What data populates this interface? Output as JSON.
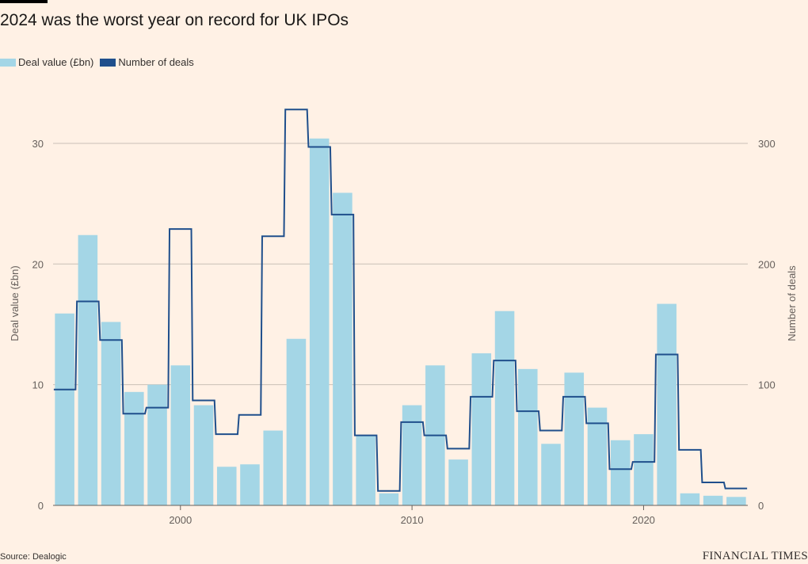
{
  "header": {
    "title": "2024 was the worst year on record for UK IPOs"
  },
  "legend": {
    "items": [
      {
        "label": "Deal value (£bn)",
        "color": "#a4d6e6"
      },
      {
        "label": "Number of deals",
        "color": "#1f4f8c"
      }
    ]
  },
  "footer": {
    "source": "Source: Dealogic",
    "brand": "FINANCIAL TIMES"
  },
  "chart_data": {
    "type": "bar",
    "title": "2024 was the worst year on record for UK IPOs",
    "x": [
      1995,
      1996,
      1997,
      1998,
      1999,
      2000,
      2001,
      2002,
      2003,
      2004,
      2005,
      2006,
      2007,
      2008,
      2009,
      2010,
      2011,
      2012,
      2013,
      2014,
      2015,
      2016,
      2017,
      2018,
      2019,
      2020,
      2021,
      2022,
      2023,
      2024
    ],
    "series": [
      {
        "name": "Deal value (£bn)",
        "kind": "bar",
        "axis": "left",
        "values": [
          15.9,
          22.4,
          15.2,
          9.4,
          10.0,
          11.6,
          8.3,
          3.2,
          3.4,
          6.2,
          13.8,
          30.4,
          25.9,
          5.8,
          1.0,
          8.3,
          11.6,
          3.8,
          12.6,
          16.1,
          11.3,
          5.1,
          11.0,
          8.1,
          5.4,
          5.9,
          16.7,
          1.0,
          0.8,
          0.7
        ]
      },
      {
        "name": "Number of deals",
        "kind": "step-line",
        "axis": "right",
        "values": [
          96,
          169,
          137,
          76,
          81,
          229,
          87,
          59,
          75,
          223,
          328,
          297,
          241,
          58,
          12,
          69,
          58,
          47,
          90,
          120,
          78,
          62,
          90,
          68,
          30,
          36,
          125,
          46,
          19,
          14
        ]
      }
    ],
    "xticks": [
      2000,
      2010,
      2020
    ],
    "ylabel": "Deal value (£bn)",
    "ylabel_right": "Number of deals",
    "ylim": [
      0,
      34
    ],
    "ylim_right": [
      0,
      340
    ],
    "yticks": [
      0,
      10,
      20,
      30
    ],
    "yticks_right": [
      0,
      100,
      200,
      300
    ],
    "grid": true,
    "legend_position": "top-left",
    "colors": {
      "bars": "#a4d6e6",
      "line": "#1f4f8c",
      "grid": "#c9bfb6",
      "axis": "#66605c"
    }
  }
}
